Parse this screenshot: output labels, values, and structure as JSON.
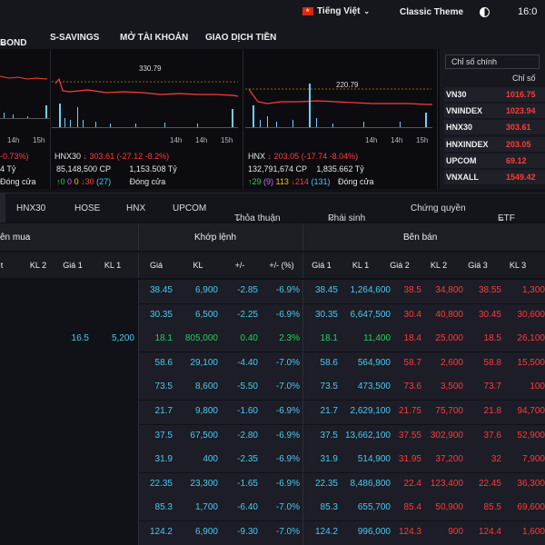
{
  "header": {
    "language": "Tiếng Việt",
    "theme": "Classic Theme",
    "clock": "16:0"
  },
  "nav": {
    "items": [
      "BOND",
      "S-SAVINGS",
      "MỞ TÀI KHOẢN",
      "GIAO DỊCH TIỀN"
    ]
  },
  "panels": [
    {
      "name": "",
      "peak_label": "",
      "ticks": [
        "14h",
        "14h",
        "15h"
      ],
      "info_line1": "-0.73%)",
      "info_line2": "4 Tỷ",
      "info_line3": "Đóng cửa"
    },
    {
      "name": "HNX30",
      "peak_label": "330.79",
      "ticks": [
        "14h",
        "14h",
        "15h"
      ],
      "value": "303.61",
      "change": "(-27.12 -8.2%)",
      "volume": "85,148,500 CP",
      "value_traded": "1,153.508 Tỷ",
      "up": "0",
      "ceil": "0",
      "flat": "0",
      "down": "30",
      "floor": "(27)",
      "status": "Đóng cửa"
    },
    {
      "name": "HNX",
      "peak_label": "220.79",
      "ticks": [
        "14h",
        "14h",
        "15h"
      ],
      "value": "203.05",
      "change": "(-17.74 -8.04%)",
      "volume": "132,791,674 CP",
      "value_traded": "1,835.662 Tỷ",
      "up": "29",
      "ceil": "(9)",
      "flat": "113",
      "down": "214",
      "floor": "(131)",
      "status": "Đóng cửa"
    }
  ],
  "summary": {
    "tab": "Chỉ số chính",
    "header": "Chỉ số",
    "items": [
      {
        "name": "VN30",
        "value": "1016.75"
      },
      {
        "name": "VNINDEX",
        "value": "1023.94"
      },
      {
        "name": "HNX30",
        "value": "303.61"
      },
      {
        "name": "HNXINDEX",
        "value": "203.05"
      },
      {
        "name": "UPCOM",
        "value": "69.12"
      },
      {
        "name": "VNXALL",
        "value": "1549.42"
      }
    ]
  },
  "tabs": [
    "HNX30",
    "HOSE",
    "HNX",
    "UPCOM",
    "Thỏa thuận",
    "Phái sinh",
    "Chứng quyền",
    "ETF"
  ],
  "table": {
    "group_headers": [
      "ên mua",
      "Khớp lệnh",
      "Bên bán"
    ],
    "columns": [
      "t",
      "KL 2",
      "Giá 1",
      "KL 1",
      "Giá",
      "KL",
      "+/-",
      "+/- (%)",
      "Giá 1",
      "KL 1",
      "Giá 2",
      "KL 2",
      "Giá 3",
      "KL 3"
    ],
    "rows": [
      {
        "bg1": "",
        "bk1": "",
        "price": "38.45",
        "vol": "6,900",
        "chg": "-2.85",
        "pct": "-6.9%",
        "s1": "38.45",
        "sk1": "1,264,600",
        "s2": "38.5",
        "sk2": "34,800",
        "s3": "38.55",
        "sk3": "1,300",
        "c": "cyan"
      },
      {
        "bg1": "",
        "bk1": "",
        "price": "30.35",
        "vol": "6,500",
        "chg": "-2.25",
        "pct": "-6.9%",
        "s1": "30.35",
        "sk1": "6,647,500",
        "s2": "30.4",
        "sk2": "40,800",
        "s3": "30.45",
        "sk3": "30,600",
        "c": "cyan"
      },
      {
        "bg1": "16.5",
        "bk1": "5,200",
        "price": "18.1",
        "vol": "805,000",
        "chg": "0.40",
        "pct": "2.3%",
        "s1": "18.1",
        "sk1": "11,400",
        "s2": "18.4",
        "sk2": "25,000",
        "s3": "18.5",
        "sk3": "26,100",
        "c": "green"
      },
      {
        "bg1": "",
        "bk1": "",
        "price": "58.6",
        "vol": "29,100",
        "chg": "-4.40",
        "pct": "-7.0%",
        "s1": "58.6",
        "sk1": "564,900",
        "s2": "58.7",
        "sk2": "2,600",
        "s3": "58.8",
        "sk3": "15,500",
        "c": "cyan"
      },
      {
        "bg1": "",
        "bk1": "",
        "price": "73.5",
        "vol": "8,600",
        "chg": "-5.50",
        "pct": "-7.0%",
        "s1": "73.5",
        "sk1": "473,500",
        "s2": "73.6",
        "sk2": "3,500",
        "s3": "73.7",
        "sk3": "100",
        "c": "cyan"
      },
      {
        "bg1": "",
        "bk1": "",
        "price": "21.7",
        "vol": "9,800",
        "chg": "-1.60",
        "pct": "-6.9%",
        "s1": "21.7",
        "sk1": "2,629,100",
        "s2": "21.75",
        "sk2": "75,700",
        "s3": "21.8",
        "sk3": "94,700",
        "c": "cyan"
      },
      {
        "bg1": "",
        "bk1": "",
        "price": "37.5",
        "vol": "67,500",
        "chg": "-2.80",
        "pct": "-6.9%",
        "s1": "37.5",
        "sk1": "13,662,100",
        "s2": "37.55",
        "sk2": "302,900",
        "s3": "37.6",
        "sk3": "52,900",
        "c": "cyan"
      },
      {
        "bg1": "",
        "bk1": "",
        "price": "31.9",
        "vol": "400",
        "chg": "-2.35",
        "pct": "-6.9%",
        "s1": "31.9",
        "sk1": "514,900",
        "s2": "31.95",
        "sk2": "37,200",
        "s3": "32",
        "sk3": "7,900",
        "c": "cyan"
      },
      {
        "bg1": "",
        "bk1": "",
        "price": "22.35",
        "vol": "23,300",
        "chg": "-1.65",
        "pct": "-6.9%",
        "s1": "22.35",
        "sk1": "8,486,800",
        "s2": "22.4",
        "sk2": "123,400",
        "s3": "22.45",
        "sk3": "36,300",
        "c": "cyan"
      },
      {
        "bg1": "",
        "bk1": "",
        "price": "85.3",
        "vol": "1,700",
        "chg": "-6.40",
        "pct": "-7.0%",
        "s1": "85.3",
        "sk1": "655,700",
        "s2": "85.4",
        "sk2": "50,900",
        "s3": "85.5",
        "sk3": "69,600",
        "c": "cyan"
      },
      {
        "bg1": "",
        "bk1": "",
        "price": "124.2",
        "vol": "6,900",
        "chg": "-9.30",
        "pct": "-7.0%",
        "s1": "124.2",
        "sk1": "996,000",
        "s2": "124.3",
        "sk2": "900",
        "s3": "124.4",
        "sk3": "1,600",
        "c": "cyan"
      }
    ]
  }
}
